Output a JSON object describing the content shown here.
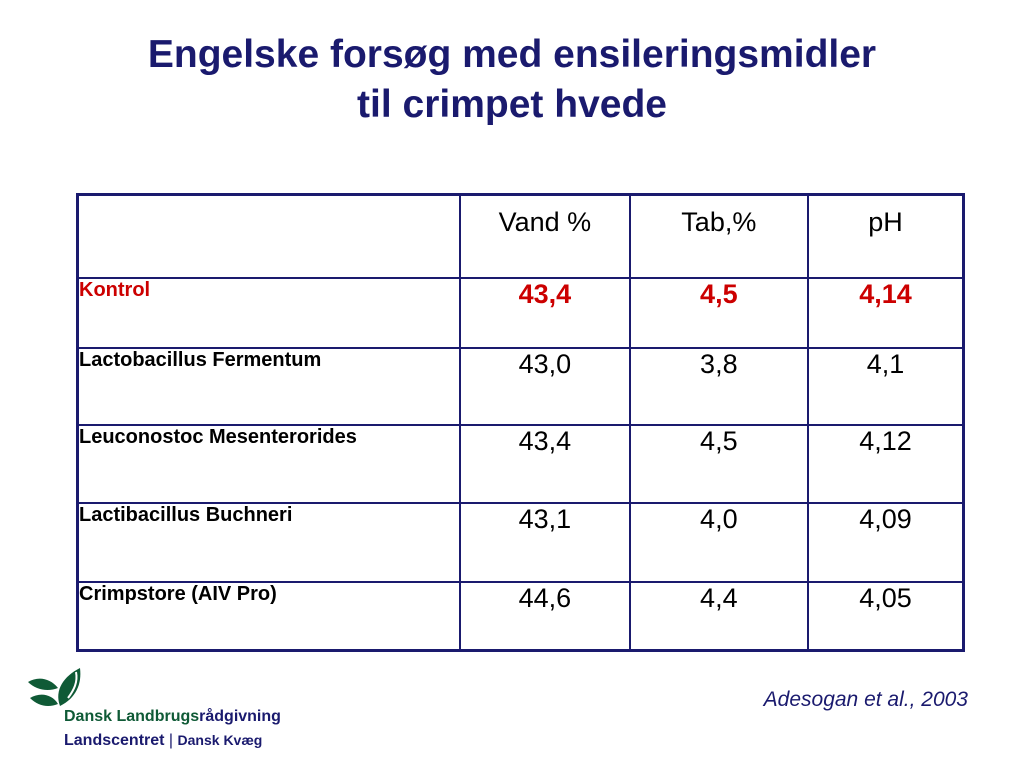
{
  "title": {
    "line1": "Engelske forsøg med ensileringsmidler",
    "line2": "til crimpet hvede"
  },
  "table": {
    "headers": [
      "",
      "Vand %",
      "Tab,%",
      "pH"
    ],
    "rows": [
      {
        "label": "Kontrol",
        "values": [
          "43,4",
          "4,5",
          "4,14"
        ]
      },
      {
        "label": "Lactobacillus Fermentum",
        "values": [
          "43,0",
          "3,8",
          "4,1"
        ]
      },
      {
        "label": "Leuconostoc Mesenterorides",
        "values": [
          "43,4",
          "4,5",
          "4,12"
        ]
      },
      {
        "label": "Lactibacillus Buchneri",
        "values": [
          "43,1",
          "4,0",
          "4,09"
        ]
      },
      {
        "label": "Crimpstore (AIV Pro)",
        "values": [
          "44,6",
          "4,4",
          "4,05"
        ]
      }
    ]
  },
  "citation": "Adesogan et al., 2003",
  "logo": {
    "name_part1": "Dansk Landbrugs",
    "name_part2": "rådgivning",
    "line2_part1": "Landscentret",
    "separator": "|",
    "line2_part2": "Dansk Kvæg",
    "icon": "leaf-logo-icon"
  },
  "colors": {
    "title": "#1a1a6e",
    "highlight": "#cc0000",
    "logo_green": "#0f5a36"
  }
}
